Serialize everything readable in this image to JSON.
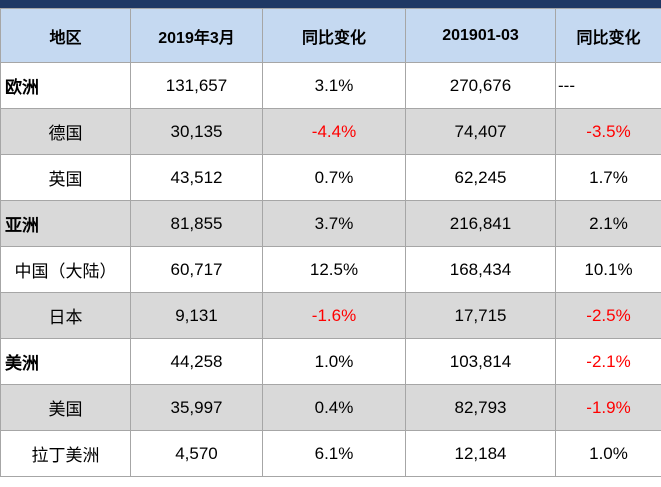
{
  "colors": {
    "title_band": "#1f3864",
    "header_bg": "#c5d9f1",
    "alt_row_bg": "#d9d9d9",
    "negative": "#ff0000"
  },
  "chart_data": {
    "type": "table",
    "columns": [
      "地区",
      "2019年3月",
      "同比变化",
      "201901-03",
      "同比变化"
    ],
    "rows": [
      {
        "region": "欧洲",
        "level": "region",
        "values": [
          "131,657",
          "3.1%",
          "270,676",
          "---"
        ]
      },
      {
        "region": "德国",
        "level": "country",
        "values": [
          "30,135",
          "-4.4%",
          "74,407",
          "-3.5%"
        ]
      },
      {
        "region": "英国",
        "level": "country",
        "values": [
          "43,512",
          "0.7%",
          "62,245",
          "1.7%"
        ]
      },
      {
        "region": "亚洲",
        "level": "region",
        "values": [
          "81,855",
          "3.7%",
          "216,841",
          "2.1%"
        ]
      },
      {
        "region": "中国（大陆）",
        "level": "country",
        "values": [
          "60,717",
          "12.5%",
          "168,434",
          "10.1%"
        ]
      },
      {
        "region": "日本",
        "level": "country",
        "values": [
          "9,131",
          "-1.6%",
          "17,715",
          "-2.5%"
        ]
      },
      {
        "region": "美洲",
        "level": "region",
        "values": [
          "44,258",
          "1.0%",
          "103,814",
          "-2.1%"
        ]
      },
      {
        "region": "美国",
        "level": "country",
        "values": [
          "35,997",
          "0.4%",
          "82,793",
          "-1.9%"
        ]
      },
      {
        "region": "拉丁美洲",
        "level": "country",
        "values": [
          "4,570",
          "6.1%",
          "12,184",
          "1.0%"
        ]
      }
    ]
  }
}
